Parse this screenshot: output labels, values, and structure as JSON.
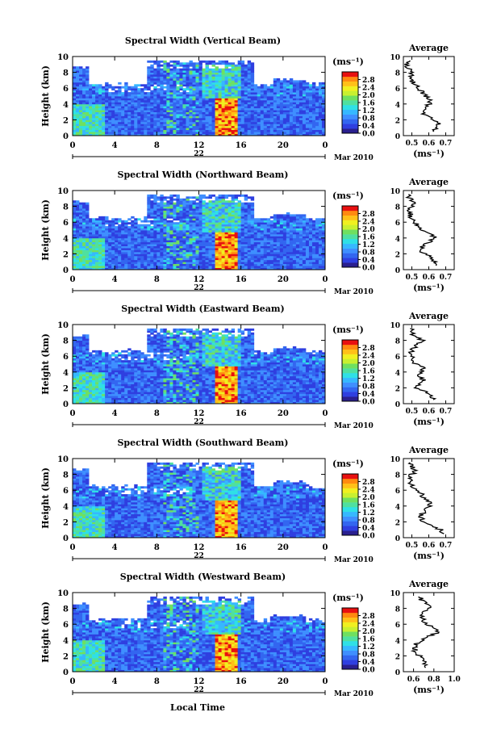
{
  "figure": {
    "x_axis_label": "Local Time",
    "colorbar_unit": "(ms⁻¹)",
    "average_title": "Average",
    "average_unit": "(ms⁻¹)"
  },
  "chart_data": [
    {
      "type": "heatmap",
      "title": "Spectral Width (Vertical Beam)",
      "ylabel": "Height (km)",
      "xlabel": "",
      "x_ticks": [
        "0",
        "4",
        "8",
        "12",
        "16",
        "20",
        "0"
      ],
      "x_range_hours": [
        0,
        24
      ],
      "y_ticks": [
        "0",
        "2",
        "4",
        "6",
        "8",
        "10"
      ],
      "ylim": [
        0,
        10
      ],
      "date_label": "22",
      "month_year": "Mar 2010",
      "colorbar_ticks": [
        "0.0",
        "0.4",
        "0.8",
        "1.2",
        "1.6",
        "2.0",
        "2.4",
        "2.8"
      ],
      "colorbar_range": [
        0,
        3.2
      ],
      "average_profile": {
        "x_ticks": [
          "0.5",
          "0.6",
          "0.7"
        ],
        "xlim": [
          0.45,
          0.75
        ],
        "heights": [
          0.5,
          1,
          1.5,
          2,
          2.5,
          3,
          3.5,
          4,
          4.5,
          5,
          5.5,
          6,
          6.5,
          7,
          7.5,
          8,
          8.5,
          9,
          9.5
        ],
        "values": [
          0.62,
          0.64,
          0.66,
          0.63,
          0.58,
          0.57,
          0.59,
          0.6,
          0.62,
          0.58,
          0.56,
          0.54,
          0.52,
          0.5,
          0.49,
          0.5,
          0.48,
          0.47,
          0.49
        ]
      }
    },
    {
      "type": "heatmap",
      "title": "Spectral Width (Northward Beam)",
      "ylabel": "Height (km)",
      "xlabel": "",
      "x_ticks": [
        "0",
        "4",
        "8",
        "12",
        "16",
        "20",
        "0"
      ],
      "x_range_hours": [
        0,
        24
      ],
      "y_ticks": [
        "0",
        "2",
        "4",
        "6",
        "8",
        "10"
      ],
      "ylim": [
        0,
        10
      ],
      "date_label": "22",
      "month_year": "Mar 2010",
      "colorbar_ticks": [
        "0.0",
        "0.4",
        "0.8",
        "1.2",
        "1.6",
        "2.0",
        "2.4",
        "2.8"
      ],
      "colorbar_range": [
        0,
        3.2
      ],
      "average_profile": {
        "x_ticks": [
          "0.5",
          "0.6",
          "0.7"
        ],
        "xlim": [
          0.45,
          0.75
        ],
        "heights": [
          0.5,
          1,
          1.5,
          2,
          2.5,
          3,
          3.5,
          4,
          4.5,
          5,
          5.5,
          6,
          6.5,
          7,
          7.5,
          8,
          8.5,
          9,
          9.5
        ],
        "values": [
          0.66,
          0.64,
          0.61,
          0.58,
          0.55,
          0.57,
          0.6,
          0.64,
          0.61,
          0.57,
          0.54,
          0.52,
          0.5,
          0.49,
          0.48,
          0.5,
          0.52,
          0.49,
          0.48
        ]
      }
    },
    {
      "type": "heatmap",
      "title": "Spectral Width (Eastward Beam)",
      "ylabel": "Height (km)",
      "xlabel": "",
      "x_ticks": [
        "0",
        "4",
        "8",
        "12",
        "16",
        "20",
        "0"
      ],
      "x_range_hours": [
        0,
        24
      ],
      "y_ticks": [
        "0",
        "2",
        "4",
        "6",
        "8",
        "10"
      ],
      "ylim": [
        0,
        10
      ],
      "date_label": "22",
      "month_year": "Mar 2010",
      "colorbar_ticks": [
        "0.0",
        "0.4",
        "0.8",
        "1.2",
        "1.6",
        "2.0",
        "2.4",
        "2.8"
      ],
      "colorbar_range": [
        0,
        3.2
      ],
      "average_profile": {
        "x_ticks": [
          "0.5",
          "0.6",
          "0.7"
        ],
        "xlim": [
          0.45,
          0.75
        ],
        "heights": [
          0.5,
          1,
          1.5,
          2,
          2.5,
          3,
          3.5,
          4,
          4.5,
          5,
          5.5,
          6,
          6.5,
          7,
          7.5,
          8,
          8.5,
          9,
          9.5
        ],
        "values": [
          0.63,
          0.61,
          0.58,
          0.53,
          0.55,
          0.57,
          0.53,
          0.55,
          0.57,
          0.52,
          0.51,
          0.5,
          0.49,
          0.51,
          0.54,
          0.56,
          0.52,
          0.5,
          0.49
        ]
      }
    },
    {
      "type": "heatmap",
      "title": "Spectral Width (Southward Beam)",
      "ylabel": "Height (km)",
      "xlabel": "",
      "x_ticks": [
        "0",
        "4",
        "8",
        "12",
        "16",
        "20",
        "0"
      ],
      "x_range_hours": [
        0,
        24
      ],
      "y_ticks": [
        "0",
        "2",
        "4",
        "6",
        "8",
        "10"
      ],
      "ylim": [
        0,
        10
      ],
      "date_label": "22",
      "month_year": "Mar 2010",
      "colorbar_ticks": [
        "0.0",
        "0.4",
        "0.8",
        "1.2",
        "1.6",
        "2.0",
        "2.4",
        "2.8"
      ],
      "colorbar_range": [
        0,
        3.2
      ],
      "average_profile": {
        "x_ticks": [
          "0.5",
          "0.6",
          "0.7"
        ],
        "xlim": [
          0.45,
          0.75
        ],
        "heights": [
          0.5,
          1,
          1.5,
          2,
          2.5,
          3,
          3.5,
          4,
          4.5,
          5,
          5.5,
          6,
          6.5,
          7,
          7.5,
          8,
          8.5,
          9,
          9.5
        ],
        "values": [
          0.68,
          0.67,
          0.61,
          0.57,
          0.55,
          0.56,
          0.58,
          0.61,
          0.6,
          0.57,
          0.56,
          0.53,
          0.5,
          0.49,
          0.49,
          0.5,
          0.52,
          0.5,
          0.49
        ]
      }
    },
    {
      "type": "heatmap",
      "title": "Spectral Width (Westward Beam)",
      "ylabel": "Height (km)",
      "xlabel": "Local Time",
      "x_ticks": [
        "0",
        "4",
        "8",
        "12",
        "16",
        "20",
        "0"
      ],
      "x_range_hours": [
        0,
        24
      ],
      "y_ticks": [
        "0",
        "2",
        "4",
        "6",
        "8",
        "10"
      ],
      "ylim": [
        0,
        10
      ],
      "date_label": "22",
      "month_year": "Mar 2010",
      "colorbar_ticks": [
        "0.0",
        "0.4",
        "0.8",
        "1.2",
        "1.6",
        "2.0",
        "2.4",
        "2.8"
      ],
      "colorbar_range": [
        0,
        3.2
      ],
      "average_profile": {
        "x_ticks": [
          "0.6",
          "0.8",
          "1.0"
        ],
        "xlim": [
          0.5,
          1.0
        ],
        "heights": [
          0.5,
          1,
          1.5,
          2,
          2.5,
          3,
          3.5,
          4,
          4.5,
          5,
          5.5,
          6,
          6.5,
          7,
          7.5,
          8,
          8.5,
          9,
          9.5
        ],
        "values": [
          0.74,
          0.72,
          0.68,
          0.66,
          0.62,
          0.61,
          0.63,
          0.68,
          0.76,
          0.84,
          0.8,
          0.72,
          0.7,
          0.68,
          0.7,
          0.76,
          0.72,
          0.68,
          0.65
        ]
      }
    }
  ]
}
